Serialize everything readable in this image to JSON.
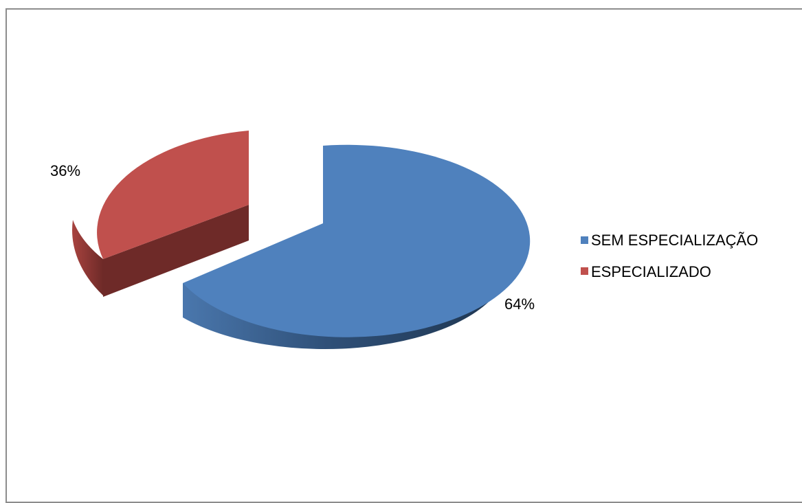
{
  "chart_data": {
    "type": "pie",
    "style": "3d-exploded",
    "title": "",
    "legend_position": "right",
    "slices": [
      {
        "label": "SEM ESPECIALIZAÇÃO",
        "value": 64,
        "display": "64%",
        "color": "#4f81bd",
        "side_color": "#2c4a6e",
        "exploded": false
      },
      {
        "label": "ESPECIALIZADO",
        "value": 36,
        "display": "36%",
        "color": "#c0504d",
        "side_color": "#6e2a28",
        "exploded": true
      }
    ]
  }
}
